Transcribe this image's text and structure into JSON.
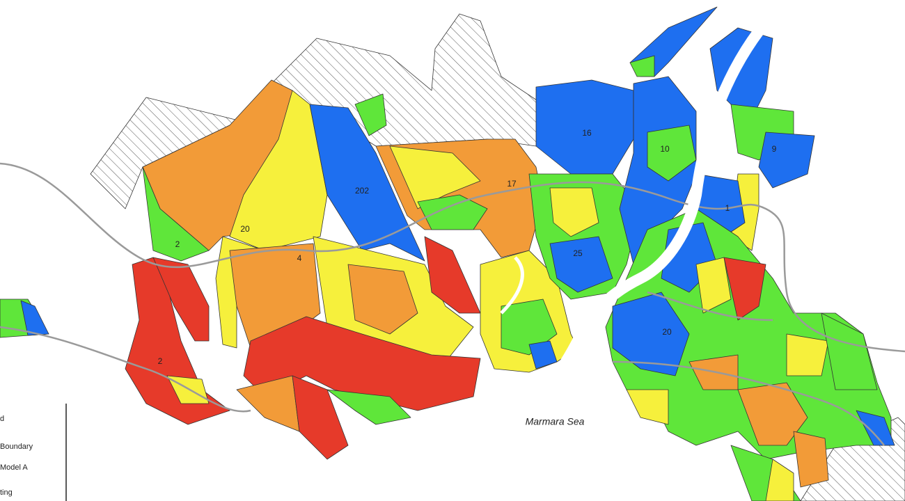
{
  "map": {
    "sea_label": "Marmara Sea",
    "region_labels": [
      "2",
      "20",
      "202",
      "4",
      "2",
      "17",
      "16",
      "10",
      "25",
      "1",
      "9",
      "20"
    ],
    "legend": {
      "items": [
        "d",
        "Boundary",
        "Model A",
        "ting"
      ]
    }
  }
}
